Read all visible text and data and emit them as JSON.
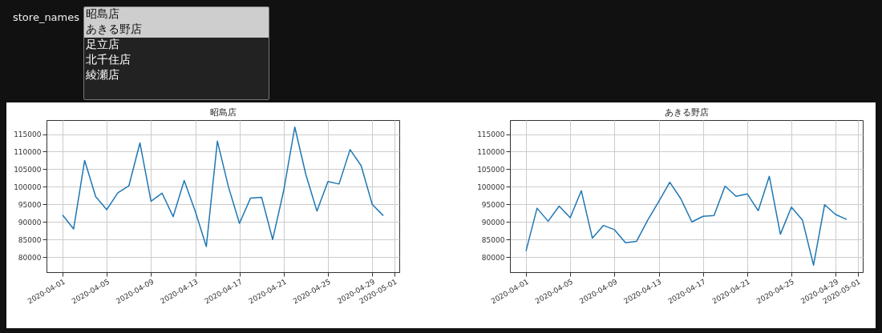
{
  "chart_data": [
    {
      "type": "other",
      "title": "store_names",
      "annotations": [
        "昭島店",
        "あきる野店",
        "足立店",
        "北千住店",
        "綾瀬店"
      ]
    },
    {
      "type": "line",
      "title": "昭島店",
      "x": [
        "2020-04-01",
        "2020-04-02",
        "2020-04-03",
        "2020-04-04",
        "2020-04-05",
        "2020-04-06",
        "2020-04-07",
        "2020-04-08",
        "2020-04-09",
        "2020-04-10",
        "2020-04-11",
        "2020-04-12",
        "2020-04-13",
        "2020-04-14",
        "2020-04-15",
        "2020-04-16",
        "2020-04-17",
        "2020-04-18",
        "2020-04-19",
        "2020-04-20",
        "2020-04-21",
        "2020-04-22",
        "2020-04-23",
        "2020-04-24",
        "2020-04-25",
        "2020-04-26",
        "2020-04-27",
        "2020-04-28",
        "2020-04-29",
        "2020-04-30"
      ],
      "series": [
        {
          "color": "#1f77b4",
          "values": [
            92000,
            88000,
            107500,
            97200,
            93500,
            98300,
            100300,
            112500,
            95900,
            98200,
            91500,
            101800,
            93000,
            83000,
            113000,
            100000,
            89600,
            96800,
            97000,
            85000,
            99000,
            117000,
            103500,
            93100,
            101500,
            100800,
            110600,
            106000,
            95000,
            91800
          ]
        }
      ],
      "xlim": [
        "2020-03-30T13:12",
        "2020-05-01T10:48"
      ],
      "xticks": [
        "2020-04-01",
        "2020-04-05",
        "2020-04-09",
        "2020-04-13",
        "2020-04-17",
        "2020-04-21",
        "2020-04-25",
        "2020-04-29",
        "2020-05-01"
      ],
      "ylim": [
        75700,
        119000
      ],
      "yticks": [
        80000,
        85000,
        90000,
        95000,
        100000,
        105000,
        110000,
        115000
      ],
      "grid": true
    },
    {
      "type": "line",
      "title": "あきる野店",
      "x": [
        "2020-04-01",
        "2020-04-02",
        "2020-04-03",
        "2020-04-04",
        "2020-04-05",
        "2020-04-06",
        "2020-04-07",
        "2020-04-08",
        "2020-04-09",
        "2020-04-10",
        "2020-04-11",
        "2020-04-12",
        "2020-04-13",
        "2020-04-14",
        "2020-04-15",
        "2020-04-16",
        "2020-04-17",
        "2020-04-18",
        "2020-04-19",
        "2020-04-20",
        "2020-04-21",
        "2020-04-22",
        "2020-04-23",
        "2020-04-24",
        "2020-04-25",
        "2020-04-26",
        "2020-04-27",
        "2020-04-28",
        "2020-04-29",
        "2020-04-30"
      ],
      "series": [
        {
          "color": "#1f77b4",
          "values": [
            81700,
            93900,
            90200,
            94500,
            91200,
            98900,
            85400,
            89000,
            87800,
            84100,
            84500,
            90500,
            95800,
            101300,
            96600,
            90000,
            91600,
            91800,
            100200,
            97300,
            98000,
            93200,
            103000,
            86500,
            94200,
            90500,
            77700,
            94900,
            92100,
            90700
          ]
        }
      ],
      "xlim": [
        "2020-03-30T13:12",
        "2020-05-01T10:48"
      ],
      "xticks": [
        "2020-04-01",
        "2020-04-05",
        "2020-04-09",
        "2020-04-13",
        "2020-04-17",
        "2020-04-21",
        "2020-04-25",
        "2020-04-29",
        "2020-05-01"
      ],
      "ylim": [
        75700,
        119000
      ],
      "yticks": [
        80000,
        85000,
        90000,
        95000,
        100000,
        105000,
        110000,
        115000
      ],
      "grid": true
    }
  ]
}
